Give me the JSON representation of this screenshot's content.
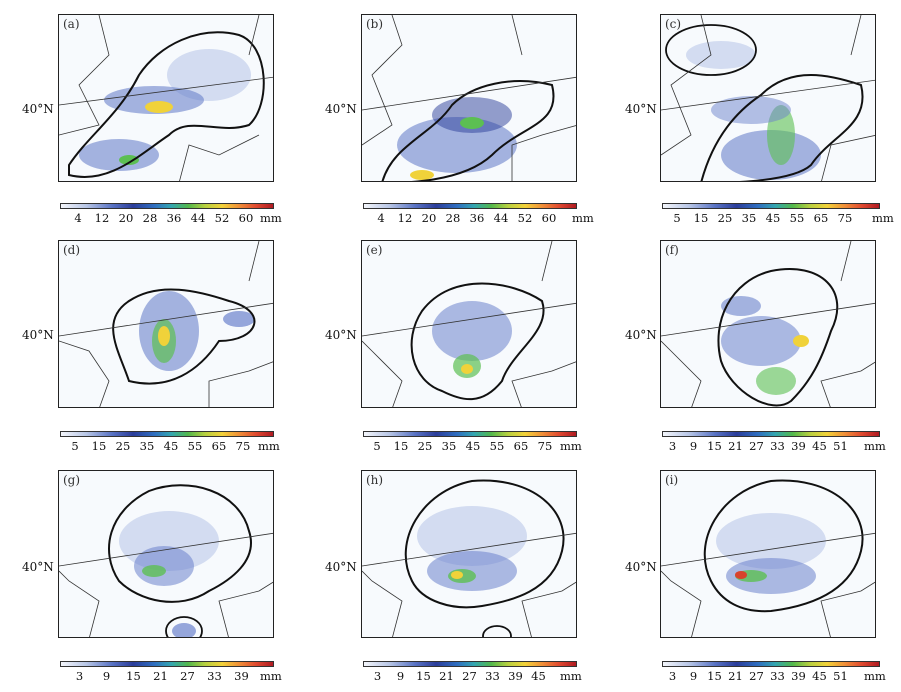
{
  "latitude_label": "40°N",
  "panels": [
    {
      "label": "(a)",
      "unit": "mm",
      "ticks": [
        "4",
        "12",
        "20",
        "28",
        "36",
        "44",
        "52",
        "60"
      ]
    },
    {
      "label": "(b)",
      "unit": "mm",
      "ticks": [
        "4",
        "12",
        "20",
        "28",
        "36",
        "44",
        "52",
        "60"
      ]
    },
    {
      "label": "(c)",
      "unit": "mm",
      "ticks": [
        "5",
        "15",
        "25",
        "35",
        "45",
        "55",
        "65",
        "75"
      ]
    },
    {
      "label": "(d)",
      "unit": "mm",
      "ticks": [
        "5",
        "15",
        "25",
        "35",
        "45",
        "55",
        "65",
        "75"
      ]
    },
    {
      "label": "(e)",
      "unit": "mm",
      "ticks": [
        "5",
        "15",
        "25",
        "35",
        "45",
        "55",
        "65",
        "75"
      ]
    },
    {
      "label": "(f)",
      "unit": "mm",
      "ticks": [
        "3",
        "9",
        "15",
        "21",
        "27",
        "33",
        "39",
        "45",
        "51"
      ]
    },
    {
      "label": "(g)",
      "unit": "mm",
      "ticks": [
        "3",
        "9",
        "15",
        "21",
        "27",
        "33",
        "39"
      ]
    },
    {
      "label": "(h)",
      "unit": "mm",
      "ticks": [
        "3",
        "9",
        "15",
        "21",
        "27",
        "33",
        "39",
        "45"
      ]
    },
    {
      "label": "(i)",
      "unit": "mm",
      "ticks": [
        "3",
        "9",
        "15",
        "21",
        "27",
        "33",
        "39",
        "45",
        "51"
      ]
    }
  ],
  "colors": {
    "light": "#c9d4ee",
    "mid": "#6b82cc",
    "dark": "#2b3d9a",
    "green": "#5cbf52",
    "yellow": "#f0d23a",
    "red": "#d8432c",
    "border": "#222222"
  }
}
